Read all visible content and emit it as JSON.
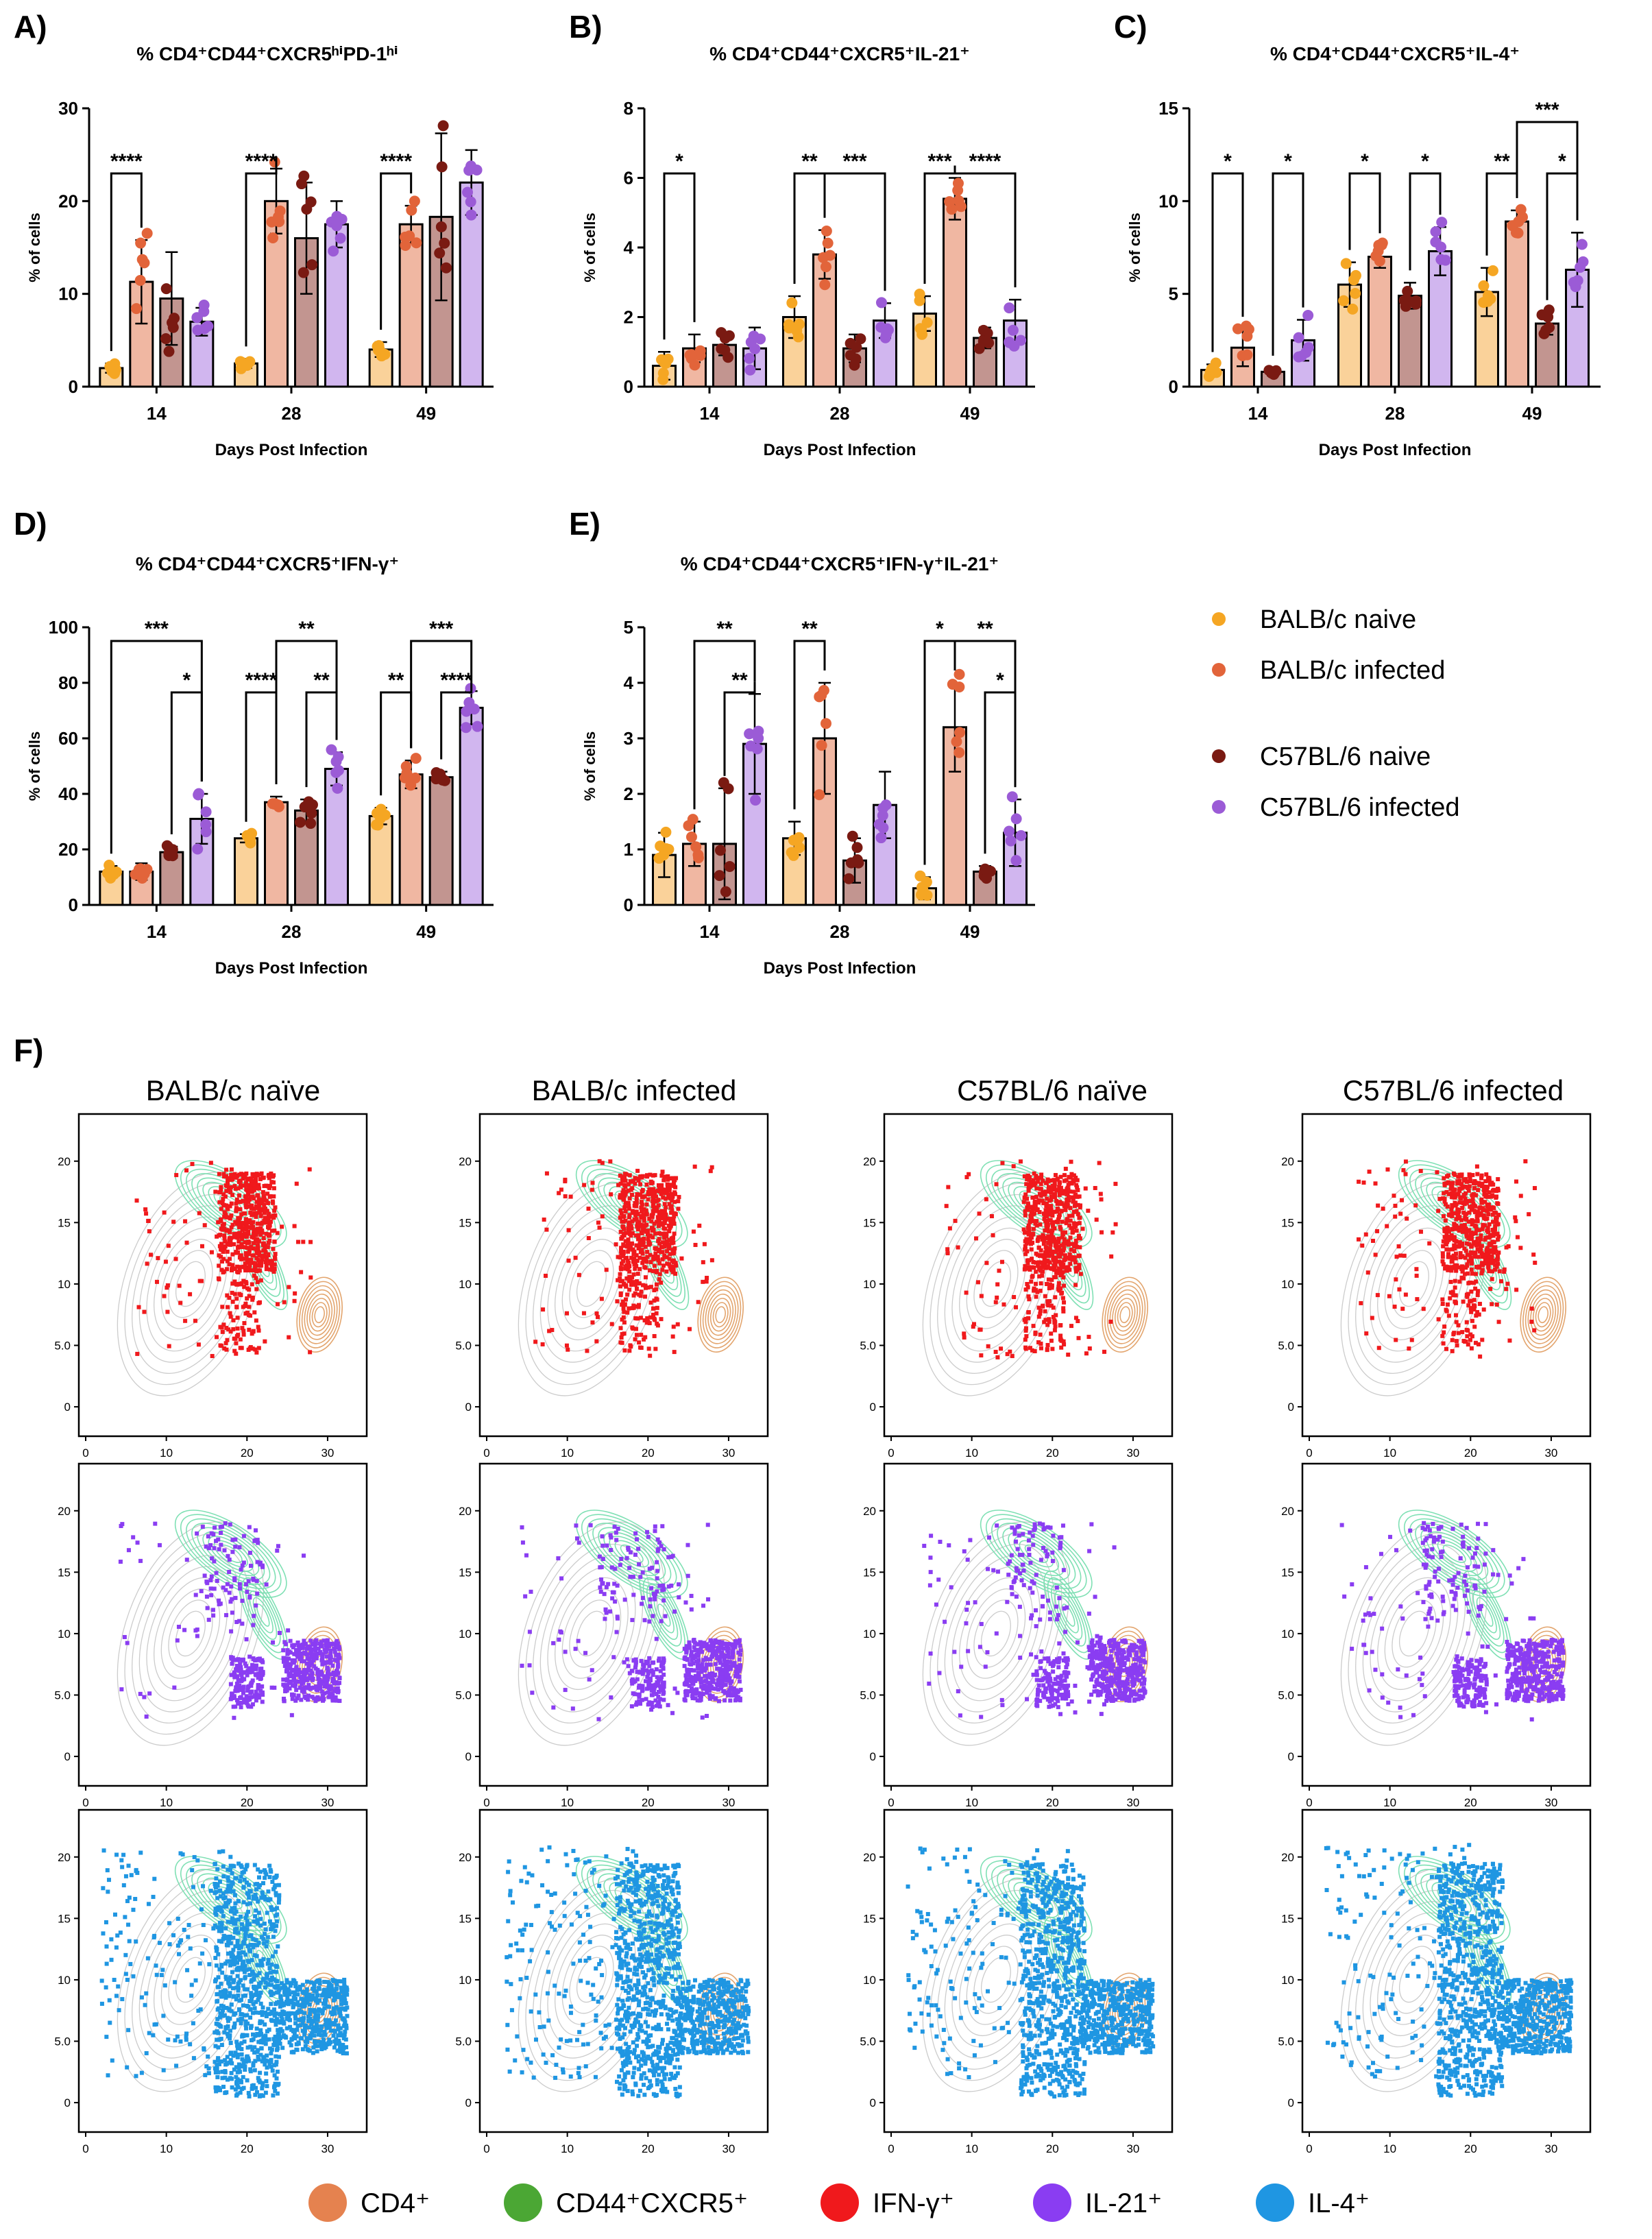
{
  "figure": {
    "groups": [
      {
        "name": "BALB/c naive",
        "color": "#F5A623"
      },
      {
        "name": "BALB/c infected",
        "color": "#E2643A"
      },
      {
        "name": "C57BL/6 naive",
        "color": "#7A1A12"
      },
      {
        "name": "C57BL/6 infected",
        "color": "#9B5BD6"
      }
    ],
    "bar_colors": [
      "#FAD29A",
      "#F0B7A2",
      "#C29590",
      "#D1B6EF"
    ],
    "bottom_legend": [
      {
        "label": "CD4⁺",
        "color": "#E5824F"
      },
      {
        "label": "CD44⁺CXCR5⁺",
        "color": "#4BA734"
      },
      {
        "label": "IFN-γ⁺",
        "color": "#F0191C"
      },
      {
        "label": "IL-21⁺",
        "color": "#8A3DF2"
      },
      {
        "label": "IL-4⁺",
        "color": "#1F96E2"
      }
    ],
    "panel_f_letter": "F)",
    "panel_f_columns": [
      "BALB/c naïve",
      "BALB/c infected",
      "C57BL/6 naïve",
      "C57BL/6 infected"
    ],
    "panel_f_axis": {
      "x_ticks": [
        "0",
        "10",
        "20",
        "30"
      ],
      "y_ticks": [
        "0",
        "5.0",
        "10",
        "15",
        "20"
      ]
    },
    "panel_f_rows": [
      {
        "marker": "IFN-γ⁺",
        "color": "#F0191C"
      },
      {
        "marker": "IL-21⁺",
        "color": "#8A3DF2"
      },
      {
        "marker": "IL-4⁺",
        "color": "#1F96E2"
      }
    ],
    "contour_colors": {
      "cd4": "#E3A56E",
      "cd44": "#7FE0B4",
      "background": "#CCCCCC"
    }
  },
  "chart_data": [
    {
      "panel": "A)",
      "type": "bar",
      "title": "% CD4⁺CD44⁺CXCR5ʰⁱPD-1ʰⁱ",
      "xlabel": "Days Post Infection",
      "ylabel": "% of cells",
      "categories": [
        "14",
        "28",
        "49"
      ],
      "ylim": [
        0,
        30
      ],
      "yticks": [
        "0",
        "10",
        "20",
        "30"
      ],
      "series": [
        {
          "name": "BALB/c naive",
          "values": [
            2,
            2.5,
            4
          ],
          "errors": [
            0.5,
            0.5,
            0.8
          ]
        },
        {
          "name": "BALB/c infected",
          "values": [
            11.3,
            20,
            17.5
          ],
          "errors": [
            4.5,
            3.5,
            2
          ]
        },
        {
          "name": "C57BL/6 naive",
          "values": [
            9.5,
            16,
            18.3
          ],
          "errors": [
            5,
            6,
            9
          ]
        },
        {
          "name": "C57BL/6 infected",
          "values": [
            7,
            17.5,
            22
          ],
          "errors": [
            1.5,
            2.5,
            3.5
          ]
        }
      ],
      "brackets": [
        {
          "c": 0,
          "a": 0,
          "b": 1,
          "level": 0,
          "label": "****"
        },
        {
          "c": 1,
          "a": 0,
          "b": 1,
          "level": 0,
          "label": "****"
        },
        {
          "c": 2,
          "a": 0,
          "b": 1,
          "level": 0,
          "label": "****"
        }
      ]
    },
    {
      "panel": "B)",
      "type": "bar",
      "title": "% CD4⁺CD44⁺CXCR5⁺IL-21⁺",
      "xlabel": "Days Post Infection",
      "ylabel": "% of cells",
      "categories": [
        "14",
        "28",
        "49"
      ],
      "ylim": [
        0,
        8
      ],
      "yticks": [
        "0",
        "2",
        "4",
        "6",
        "8"
      ],
      "series": [
        {
          "name": "BALB/c naive",
          "values": [
            0.6,
            2,
            2.1
          ],
          "errors": [
            0.4,
            0.6,
            0.5
          ]
        },
        {
          "name": "BALB/c infected",
          "values": [
            1.1,
            3.8,
            5.4
          ],
          "errors": [
            0.4,
            0.7,
            0.6
          ]
        },
        {
          "name": "C57BL/6 naive",
          "values": [
            1.2,
            1.1,
            1.4
          ],
          "errors": [
            0.3,
            0.4,
            0.3
          ]
        },
        {
          "name": "C57BL/6 infected",
          "values": [
            1.1,
            1.9,
            1.9
          ],
          "errors": [
            0.6,
            0.5,
            0.6
          ]
        }
      ],
      "brackets": [
        {
          "c": 0,
          "a": 0,
          "b": 1,
          "level": 0,
          "label": "*"
        },
        {
          "c": 1,
          "a": 0,
          "b": 1,
          "level": 0,
          "label": "**"
        },
        {
          "c": 1,
          "a": 1,
          "b": 3,
          "level": 0,
          "label": "***"
        },
        {
          "c": 2,
          "a": 0,
          "b": 1,
          "level": 0,
          "label": "***"
        },
        {
          "c": 2,
          "a": 1,
          "b": 3,
          "level": 0,
          "label": "****"
        }
      ]
    },
    {
      "panel": "C)",
      "type": "bar",
      "title": "% CD4⁺CD44⁺CXCR5⁺IL-4⁺",
      "xlabel": "Days Post Infection",
      "ylabel": "% of cells",
      "categories": [
        "14",
        "28",
        "49"
      ],
      "ylim": [
        0,
        15
      ],
      "yticks": [
        "0",
        "5",
        "10",
        "15"
      ],
      "series": [
        {
          "name": "BALB/c naive",
          "values": [
            0.9,
            5.5,
            5.1
          ],
          "errors": [
            0.3,
            1.2,
            1.3
          ]
        },
        {
          "name": "BALB/c infected",
          "values": [
            2.1,
            7,
            8.9
          ],
          "errors": [
            1.0,
            0.6,
            0.6
          ]
        },
        {
          "name": "C57BL/6 naive",
          "values": [
            0.8,
            4.9,
            3.4
          ],
          "errors": [
            0.2,
            0.7,
            0.6
          ]
        },
        {
          "name": "C57BL/6 infected",
          "values": [
            2.5,
            7.3,
            6.3
          ],
          "errors": [
            1.1,
            1.3,
            2
          ]
        }
      ],
      "brackets": [
        {
          "c": 0,
          "a": 0,
          "b": 1,
          "level": 0,
          "label": "*"
        },
        {
          "c": 0,
          "a": 2,
          "b": 3,
          "level": 0,
          "label": "*"
        },
        {
          "c": 1,
          "a": 0,
          "b": 1,
          "level": 0,
          "label": "*"
        },
        {
          "c": 1,
          "a": 2,
          "b": 3,
          "level": 0,
          "label": "*"
        },
        {
          "c": 2,
          "a": 0,
          "b": 1,
          "level": 0,
          "label": "**"
        },
        {
          "c": 2,
          "a": 2,
          "b": 3,
          "level": 0,
          "label": "*"
        },
        {
          "c": 2,
          "a": 1,
          "b": 3,
          "level": 1,
          "label": "***"
        }
      ]
    },
    {
      "panel": "D)",
      "type": "bar",
      "title": "% CD4⁺CD44⁺CXCR5⁺IFN-γ⁺",
      "xlabel": "Days Post Infection",
      "ylabel": "% of cells",
      "categories": [
        "14",
        "28",
        "49"
      ],
      "ylim": [
        0,
        100
      ],
      "yticks": [
        "0",
        "20",
        "40",
        "60",
        "80",
        "100"
      ],
      "series": [
        {
          "name": "BALB/c naive",
          "values": [
            12,
            24,
            32
          ],
          "errors": [
            2,
            1.5,
            3
          ]
        },
        {
          "name": "BALB/c infected",
          "values": [
            12,
            37,
            47
          ],
          "errors": [
            3,
            2,
            5
          ]
        },
        {
          "name": "C57BL/6 naive",
          "values": [
            19,
            34,
            46
          ],
          "errors": [
            2,
            4,
            2
          ]
        },
        {
          "name": "C57BL/6 infected",
          "values": [
            31,
            49,
            71
          ],
          "errors": [
            9,
            6,
            6
          ]
        }
      ],
      "brackets": [
        {
          "c": 0,
          "a": 2,
          "b": 3,
          "level": 0,
          "label": "*"
        },
        {
          "c": 0,
          "a": 0,
          "b": 3,
          "level": 1,
          "label": "***"
        },
        {
          "c": 1,
          "a": 0,
          "b": 1,
          "level": 0,
          "label": "****"
        },
        {
          "c": 1,
          "a": 2,
          "b": 3,
          "level": 0,
          "label": "**"
        },
        {
          "c": 1,
          "a": 1,
          "b": 3,
          "level": 1,
          "label": "**"
        },
        {
          "c": 2,
          "a": 0,
          "b": 1,
          "level": 0,
          "label": "**"
        },
        {
          "c": 2,
          "a": 2,
          "b": 3,
          "level": 0,
          "label": "****"
        },
        {
          "c": 2,
          "a": 1,
          "b": 3,
          "level": 1,
          "label": "***"
        }
      ]
    },
    {
      "panel": "E)",
      "type": "bar",
      "title": "% CD4⁺CD44⁺CXCR5⁺IFN-γ⁺IL-21⁺",
      "xlabel": "Days Post Infection",
      "ylabel": "% of cells",
      "categories": [
        "14",
        "28",
        "49"
      ],
      "ylim": [
        0,
        5
      ],
      "yticks": [
        "0",
        "1",
        "2",
        "3",
        "4",
        "5"
      ],
      "series": [
        {
          "name": "BALB/c naive",
          "values": [
            0.9,
            1.2,
            0.3
          ],
          "errors": [
            0.4,
            0.3,
            0.2
          ]
        },
        {
          "name": "BALB/c infected",
          "values": [
            1.1,
            3,
            3.2
          ],
          "errors": [
            0.4,
            1,
            0.8
          ]
        },
        {
          "name": "C57BL/6 naive",
          "values": [
            1.1,
            0.8,
            0.6
          ],
          "errors": [
            1,
            0.4,
            0.1
          ]
        },
        {
          "name": "C57BL/6 infected",
          "values": [
            2.9,
            1.8,
            1.3
          ],
          "errors": [
            0.9,
            0.6,
            0.6
          ]
        }
      ],
      "brackets": [
        {
          "c": 0,
          "a": 2,
          "b": 3,
          "level": 0,
          "label": "**"
        },
        {
          "c": 0,
          "a": 1,
          "b": 3,
          "level": 1,
          "label": "**"
        },
        {
          "c": 1,
          "a": 0,
          "b": 1,
          "level": 1,
          "label": "**"
        },
        {
          "c": 2,
          "a": 0,
          "b": 1,
          "level": 1,
          "label": "*"
        },
        {
          "c": 2,
          "a": 2,
          "b": 3,
          "level": 0,
          "label": "*"
        },
        {
          "c": 2,
          "a": 1,
          "b": 3,
          "level": 1,
          "label": "**"
        }
      ]
    }
  ]
}
